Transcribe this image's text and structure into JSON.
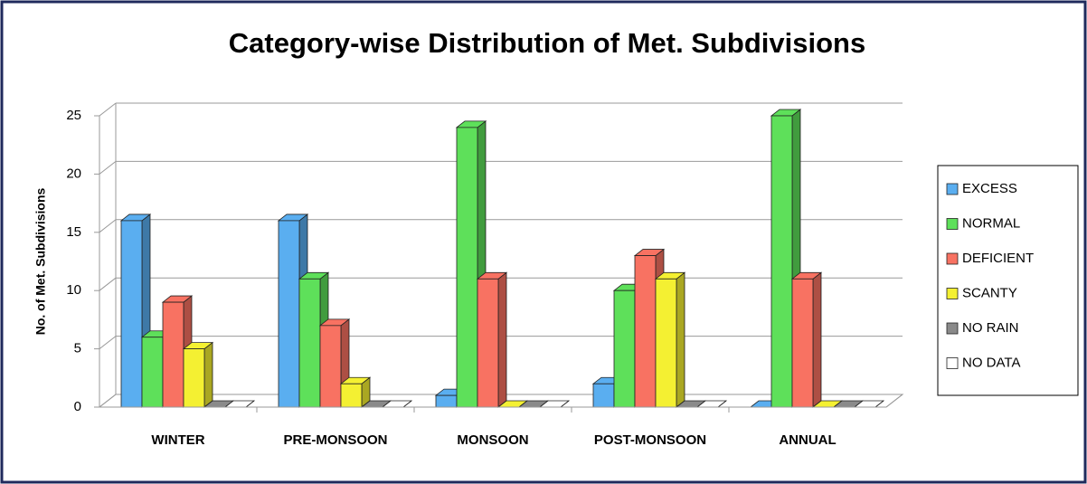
{
  "chart_data": {
    "type": "bar3d",
    "title": "Category-wise Distribution of Met. Subdivisions",
    "ylabel": "No. of Met. Subdivisions",
    "categories": [
      "WINTER",
      "PRE-MONSOON",
      "MONSOON",
      "POST-MONSOON",
      "ANNUAL"
    ],
    "series": [
      {
        "name": "EXCESS",
        "color": "#5aaef0",
        "values": [
          16,
          16,
          1,
          2,
          0
        ]
      },
      {
        "name": "NORMAL",
        "color": "#5ee05a",
        "values": [
          6,
          11,
          24,
          10,
          25
        ]
      },
      {
        "name": "DEFICIENT",
        "color": "#f87262",
        "values": [
          9,
          7,
          11,
          13,
          11
        ]
      },
      {
        "name": "SCANTY",
        "color": "#f4f032",
        "values": [
          5,
          2,
          0,
          11,
          0
        ]
      },
      {
        "name": "NO RAIN",
        "color": "#8a8a8a",
        "values": [
          0,
          0,
          0,
          0,
          0
        ]
      },
      {
        "name": "NO DATA",
        "color": "#ffffff",
        "values": [
          0,
          0,
          0,
          0,
          0
        ]
      }
    ],
    "ylim": [
      0,
      25
    ],
    "yticks": [
      0,
      5,
      10,
      15,
      20,
      25
    ],
    "grid": true,
    "legend": "right"
  }
}
